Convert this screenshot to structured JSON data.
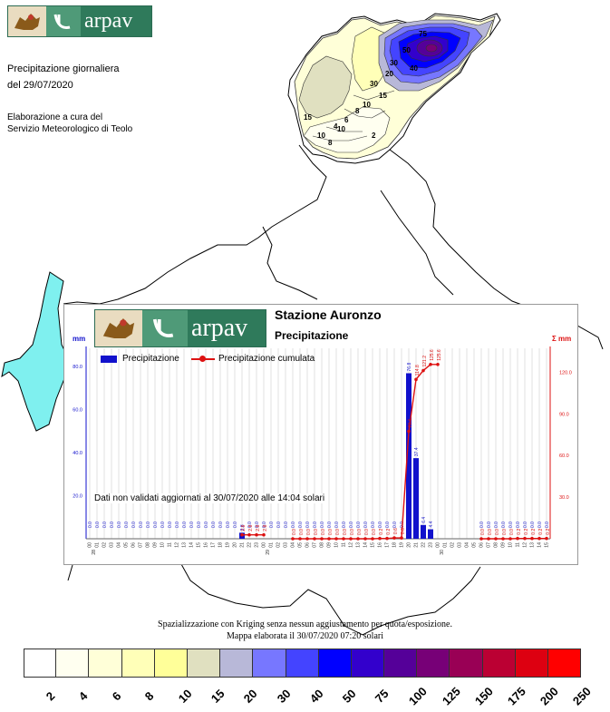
{
  "header": {
    "logo_text": "arpav",
    "title_line1": "Precipitazione giornaliera",
    "title_line2": "del 29/07/2020",
    "credit_line1": "Elaborazione a cura del",
    "credit_line2": "Servizio Meteorologico di Teolo"
  },
  "map": {
    "contour_labels": [
      "75",
      "50",
      "30",
      "20",
      "40",
      "30",
      "15",
      "10",
      "8",
      "6",
      "4",
      "2",
      "10",
      "10",
      "8",
      "15"
    ]
  },
  "chart": {
    "logo_text": "arpav",
    "station": "Stazione Auronzo",
    "variable": "Precipitazione",
    "left_unit": "mm",
    "right_unit": "Σ mm",
    "legend_bar": "Precipitazione",
    "legend_line": "Precipitazione cumulata",
    "notice": "Dati non validati aggiornati al 30/07/2020 alle 14:04 solari"
  },
  "chart_data": {
    "type": "bar",
    "title": "Stazione Auronzo",
    "subtitle": "Precipitazione",
    "ylabel": "mm",
    "y2label": "Σ mm",
    "ylim": [
      0,
      85
    ],
    "y2lim": [
      0,
      132
    ],
    "yticks": [
      "80.0",
      "60.0",
      "40.0",
      "20.0"
    ],
    "y2ticks": [
      "120.0",
      "90.0",
      "60.0",
      "30.0"
    ],
    "categories": [
      "00",
      "01",
      "02",
      "03",
      "04",
      "05",
      "06",
      "07",
      "08",
      "09",
      "10",
      "11",
      "12",
      "13",
      "14",
      "15",
      "16",
      "17",
      "18",
      "19",
      "20",
      "21",
      "22",
      "23",
      "00",
      "01",
      "02",
      "03",
      "04",
      "05",
      "06",
      "07",
      "08",
      "09",
      "10",
      "11",
      "12",
      "13",
      "14",
      "15",
      "16",
      "17",
      "18",
      "19",
      "20",
      "21",
      "22",
      "23",
      "00",
      "01",
      "02",
      "03",
      "04",
      "05",
      "06",
      "07",
      "08",
      "09",
      "10",
      "11",
      "12",
      "13",
      "14",
      "15"
    ],
    "date_labels": [
      "28",
      "29",
      "30"
    ],
    "series": [
      {
        "name": "Precipitazione",
        "color": "#1111cc",
        "values": [
          0.0,
          0.0,
          0.0,
          0.0,
          0.0,
          0.0,
          0.0,
          0.0,
          0.0,
          0.0,
          0.0,
          0.0,
          0.0,
          0.0,
          0.0,
          0.0,
          0.0,
          0.0,
          0.0,
          0.0,
          0.0,
          2.8,
          0.0,
          0.0,
          0.0,
          0.0,
          0.0,
          0.0,
          0.0,
          0.0,
          0.0,
          0.0,
          0.0,
          0.0,
          0.0,
          0.0,
          0.0,
          0.0,
          0.0,
          0.0,
          0.0,
          0.0,
          0.0,
          0.0,
          76.8,
          37.4,
          6.4,
          4.4,
          null,
          null,
          null,
          null,
          null,
          null,
          0.0,
          0.0,
          0.0,
          0.0,
          0.0,
          0.0,
          0.0,
          0.0,
          0.0,
          0.0
        ]
      },
      {
        "name": "Precipitazione cumulata",
        "color": "#dd1111",
        "values": [
          null,
          null,
          null,
          null,
          null,
          null,
          null,
          null,
          null,
          null,
          null,
          null,
          null,
          null,
          null,
          null,
          null,
          null,
          null,
          null,
          null,
          2.8,
          2.8,
          2.8,
          2.8,
          null,
          null,
          null,
          0.0,
          0.0,
          0.0,
          0.0,
          0.0,
          0.0,
          0.0,
          0.0,
          0.0,
          0.0,
          0.0,
          0.0,
          0.2,
          0.2,
          0.6,
          0.6,
          77.4,
          114.8,
          121.2,
          125.6,
          125.6,
          null,
          null,
          null,
          null,
          null,
          0.0,
          0.0,
          0.0,
          0.0,
          0.0,
          0.2,
          0.2,
          0.2,
          0.2,
          0.2
        ]
      }
    ],
    "grid": true,
    "legend_position": "top-left"
  },
  "footer": {
    "line1": "Spazializzazione con Kriging senza nessun aggiustamento per quota/esposizione.",
    "line2": "Mappa elaborata il 30/07/2020 07:20 solari"
  },
  "legend": {
    "labels": [
      "2",
      "4",
      "6",
      "8",
      "10",
      "15",
      "20",
      "30",
      "40",
      "50",
      "75",
      "100",
      "125",
      "150",
      "175",
      "200",
      "250"
    ],
    "colors": [
      "#ffffff",
      "#fffff0",
      "#ffffd8",
      "#ffffb8",
      "#ffff99",
      "#e0e0c0",
      "#b8b8d8",
      "#7777ff",
      "#4444ff",
      "#0000ff",
      "#3300cc",
      "#550099",
      "#770077",
      "#990055",
      "#bb0033",
      "#dd0011",
      "#ff0000"
    ]
  }
}
